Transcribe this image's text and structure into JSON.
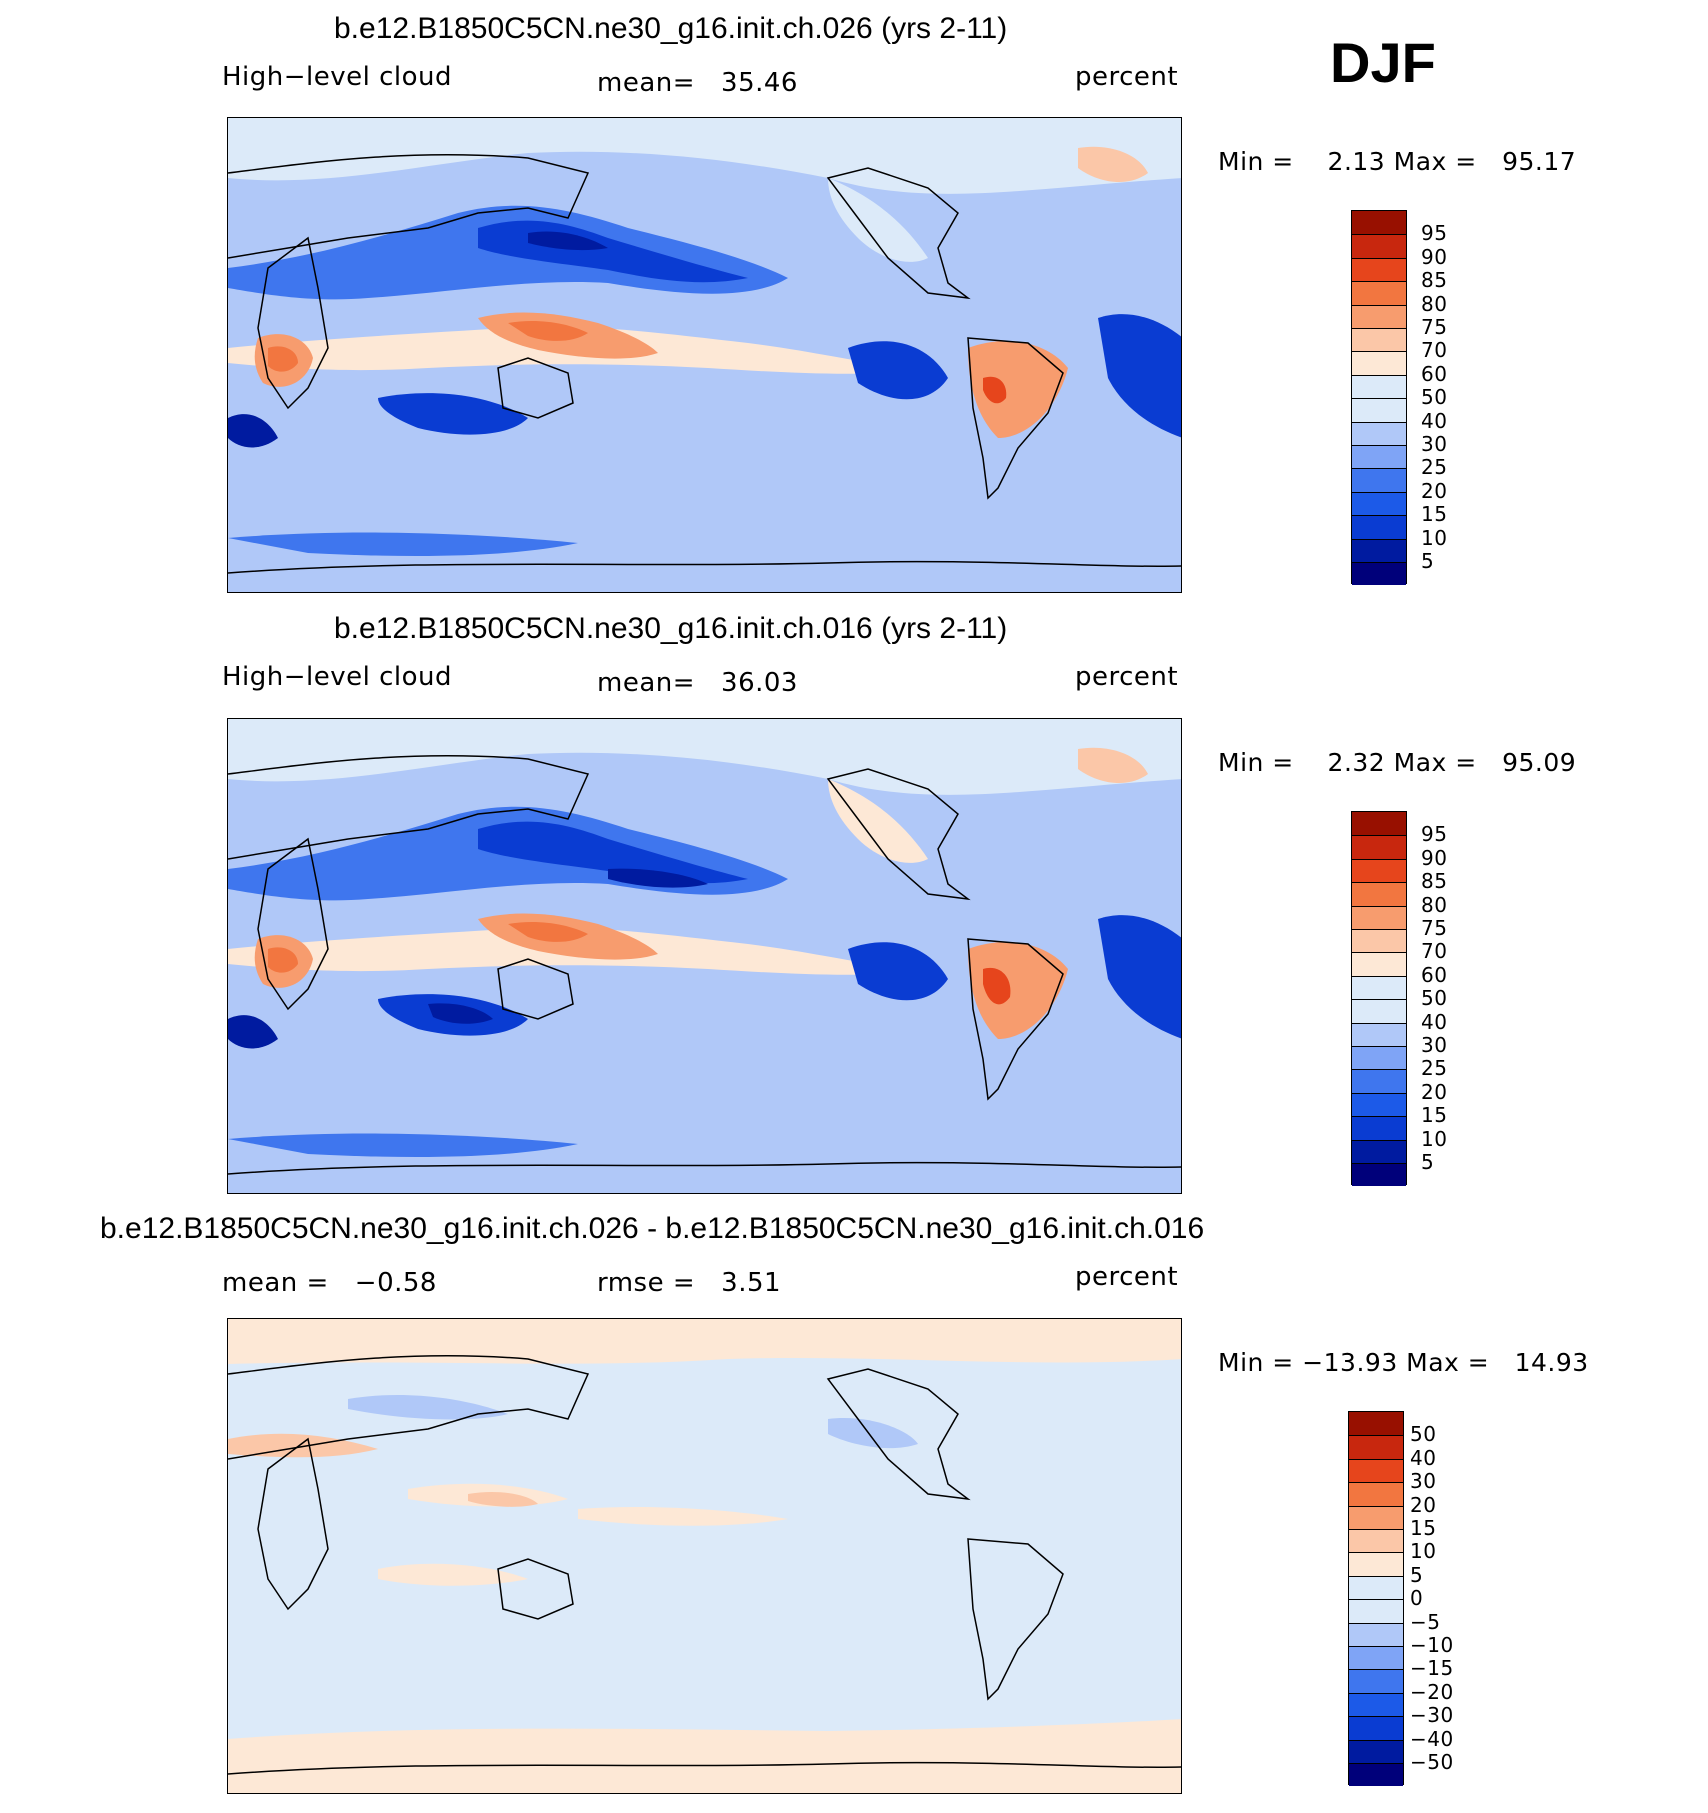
{
  "season": "DJF",
  "colors": {
    "full": [
      "#00007a",
      "#001ba0",
      "#0a3cd2",
      "#1c5ae8",
      "#3f76ee",
      "#7fa4f6",
      "#b0c8f8",
      "#dceaf9",
      "#fde8d6",
      "#fbc7a8",
      "#f79c6e",
      "#f27640",
      "#e6451c",
      "#c8270e",
      "#981000"
    ],
    "diff": [
      "#00007a",
      "#001ba0",
      "#0a3cd2",
      "#1c5ae8",
      "#3f76ee",
      "#7fa4f6",
      "#b0c8f8",
      "#dceaf9",
      "#fde8d6",
      "#fbc7a8",
      "#f79c6e",
      "#f27640",
      "#e6451c",
      "#c8270e",
      "#981000"
    ]
  },
  "panels": [
    {
      "title": "b.e12.B1850C5CN.ne30_g16.init.ch.026 (yrs 2-11)",
      "left_label": "High−level cloud",
      "stat1_label": "mean=",
      "stat1_value": "35.46",
      "units": "percent",
      "minmax": "Min =    2.13 Max =   95.17",
      "levels": [
        "95",
        "90",
        "85",
        "80",
        "75",
        "70",
        "60",
        "50",
        "40",
        "30",
        "25",
        "20",
        "15",
        "10",
        "5"
      ],
      "background_color": "#b0c8f8",
      "features": [
        {
          "name": "n-pacific-storm-track",
          "color": "#0a3cd2"
        },
        {
          "name": "maritime-continent-high",
          "color": "#f79c6e"
        },
        {
          "name": "amazon-high",
          "color": "#f79c6e"
        },
        {
          "name": "southern-africa-high",
          "color": "#f27640"
        }
      ]
    },
    {
      "title": "b.e12.B1850C5CN.ne30_g16.init.ch.016 (yrs 2-11)",
      "left_label": "High−level cloud",
      "stat1_label": "mean=",
      "stat1_value": "36.03",
      "units": "percent",
      "minmax": "Min =    2.32 Max =   95.09",
      "levels": [
        "95",
        "90",
        "85",
        "80",
        "75",
        "70",
        "60",
        "50",
        "40",
        "30",
        "25",
        "20",
        "15",
        "10",
        "5"
      ],
      "background_color": "#b0c8f8",
      "features": [
        {
          "name": "n-pacific-storm-track",
          "color": "#0a3cd2"
        },
        {
          "name": "maritime-continent-high",
          "color": "#f79c6e"
        },
        {
          "name": "amazon-high",
          "color": "#f79c6e"
        },
        {
          "name": "southern-africa-high",
          "color": "#f27640"
        }
      ]
    },
    {
      "title": "b.e12.B1850C5CN.ne30_g16.init.ch.026 - b.e12.B1850C5CN.ne30_g16.init.ch.016",
      "left_label": "mean =",
      "left_value": "−0.58",
      "stat1_label": "rmse =",
      "stat1_value": "3.51",
      "units": "percent",
      "minmax": "Min = −13.93 Max =   14.93",
      "levels": [
        "50",
        "40",
        "30",
        "20",
        "15",
        "10",
        "5",
        "0",
        "−5",
        "−10",
        "−15",
        "−20",
        "−30",
        "−40",
        "−50"
      ],
      "background_color": "#dceaf9"
    }
  ]
}
